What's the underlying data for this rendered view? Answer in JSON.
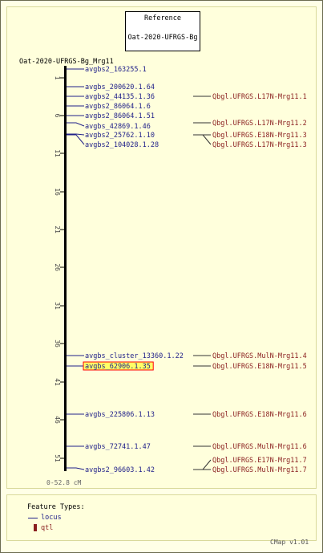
{
  "reference": {
    "title": "Reference",
    "map_name": "Oat-2020-UFRGS-Bg"
  },
  "map": {
    "title": "Oat-2020-UFRGS-Bg_Mrg11",
    "range_label": "0-52.8 cM",
    "ticks": [
      "1",
      "6",
      "11",
      "16",
      "21",
      "26",
      "31",
      "36",
      "41",
      "46",
      "51"
    ],
    "loci": [
      {
        "name": "avgbs2_163255.1",
        "highlight": false
      },
      {
        "name": "avgbs_200620.1.64",
        "highlight": false
      },
      {
        "name": "avgbs2_44135.1.36",
        "highlight": false
      },
      {
        "name": "avgbs2_86064.1.6",
        "highlight": false
      },
      {
        "name": "avgbs2_86064.1.51",
        "highlight": false
      },
      {
        "name": "avgbs_42869.1.46",
        "highlight": false
      },
      {
        "name": "avgbs2_25762.1.10",
        "highlight": false
      },
      {
        "name": "avgbs2_104028.1.28",
        "highlight": false
      },
      {
        "name": "avgbs_cluster_13360.1.22",
        "highlight": false
      },
      {
        "name": "avgbs_62906.1.35",
        "highlight": true
      },
      {
        "name": "avgbs_225806.1.13",
        "highlight": false
      },
      {
        "name": "avgbs_72741.1.47",
        "highlight": false
      },
      {
        "name": "avgbs2_96603.1.42",
        "highlight": false
      }
    ],
    "qtls": [
      "Qbgl.UFRGS.L17N-Mrg11.1",
      "Qbgl.UFRGS.L17N-Mrg11.2",
      "Qbgl.UFRGS.E18N-Mrg11.3",
      "Qbgl.UFRGS.L17N-Mrg11.3",
      "Qbgl.UFRGS.MulN-Mrg11.4",
      "Qbgl.UFRGS.E18N-Mrg11.5",
      "Qbgl.UFRGS.E18N-Mrg11.6",
      "Qbgl.UFRGS.MulN-Mrg11.6",
      "Qbgl.UFRGS.E17N-Mrg11.7",
      "Qbgl.UFRGS.MulN-Mrg11.7"
    ]
  },
  "legend": {
    "title": "Feature Types:",
    "locus": "locus",
    "qtl": "qtl"
  },
  "footer": {
    "version": "CMap v1.01"
  },
  "colors": {
    "locus": "#22228a",
    "qtl": "#8a1f1f",
    "highlight_fill": "#ffff66",
    "highlight_border": "#ff0000"
  }
}
